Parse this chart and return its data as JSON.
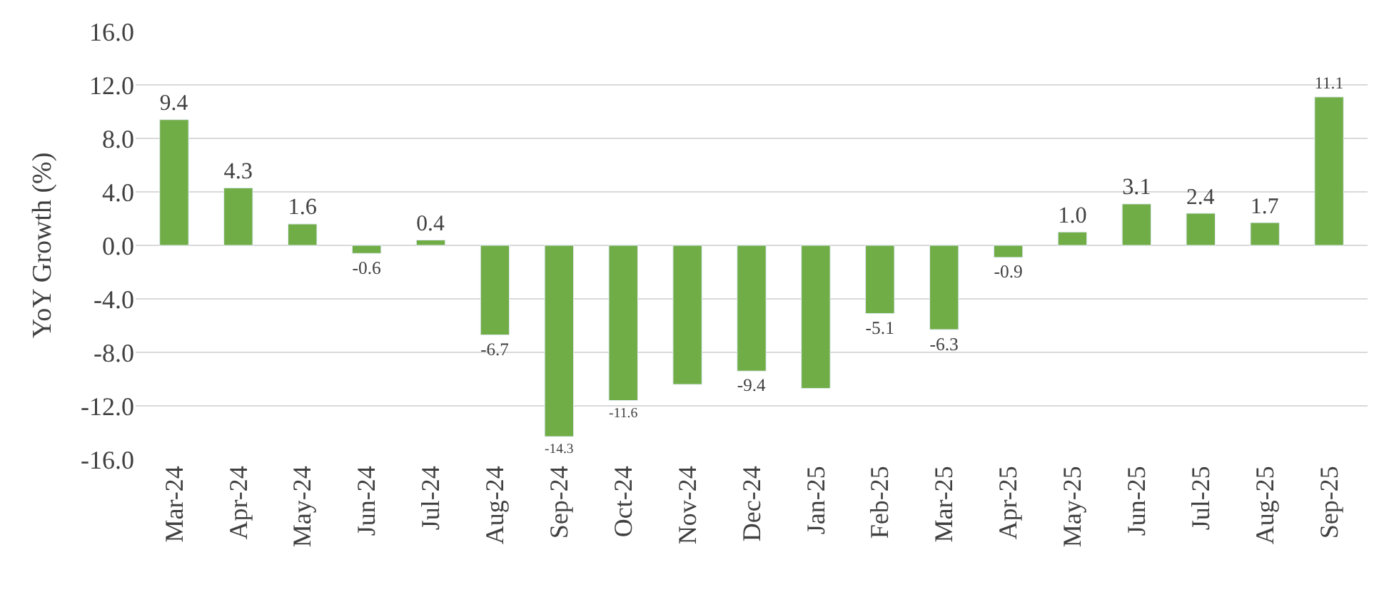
{
  "chart_data": {
    "type": "bar",
    "ylabel": "YoY Growth (%)",
    "categories": [
      "Mar-24",
      "Apr-24",
      "May-24",
      "Jun-24",
      "Jul-24",
      "Aug-24",
      "Sep-24",
      "Oct-24",
      "Nov-24",
      "Dec-24",
      "Jan-25",
      "Feb-25",
      "Mar-25",
      "Apr-25",
      "May-25",
      "Jun-25",
      "Jul-25",
      "Aug-25",
      "Sep-25"
    ],
    "values": [
      9.4,
      4.3,
      1.6,
      -0.6,
      0.4,
      -6.7,
      -14.3,
      -11.6,
      -10.4,
      -9.4,
      -10.7,
      -5.1,
      -6.3,
      -0.9,
      1.0,
      3.1,
      2.4,
      1.7,
      11.1
    ],
    "value_labels": [
      "9.4",
      "4.3",
      "1.6",
      "-0.6",
      "0.4",
      "-6.7",
      "-14.3",
      "-11.6",
      null,
      "-9.4",
      null,
      "-5.1",
      "-6.3",
      "-0.9",
      "1.0",
      "3.1",
      "2.4",
      "1.7",
      "11.1"
    ],
    "color": "#70ad47",
    "ylim": [
      -16,
      16
    ],
    "yticks": [
      {
        "value": -16,
        "label": "-16.0"
      },
      {
        "value": -12,
        "label": "-12.0"
      },
      {
        "value": -8,
        "label": "-8.0"
      },
      {
        "value": -4,
        "label": "-4.0"
      },
      {
        "value": 0,
        "label": "0.0"
      },
      {
        "value": 4,
        "label": "4.0"
      },
      {
        "value": 8,
        "label": "8.0"
      },
      {
        "value": 12,
        "label": "12.0"
      },
      {
        "value": 16,
        "label": "16.0"
      }
    ],
    "grid": "y",
    "legend": false
  }
}
